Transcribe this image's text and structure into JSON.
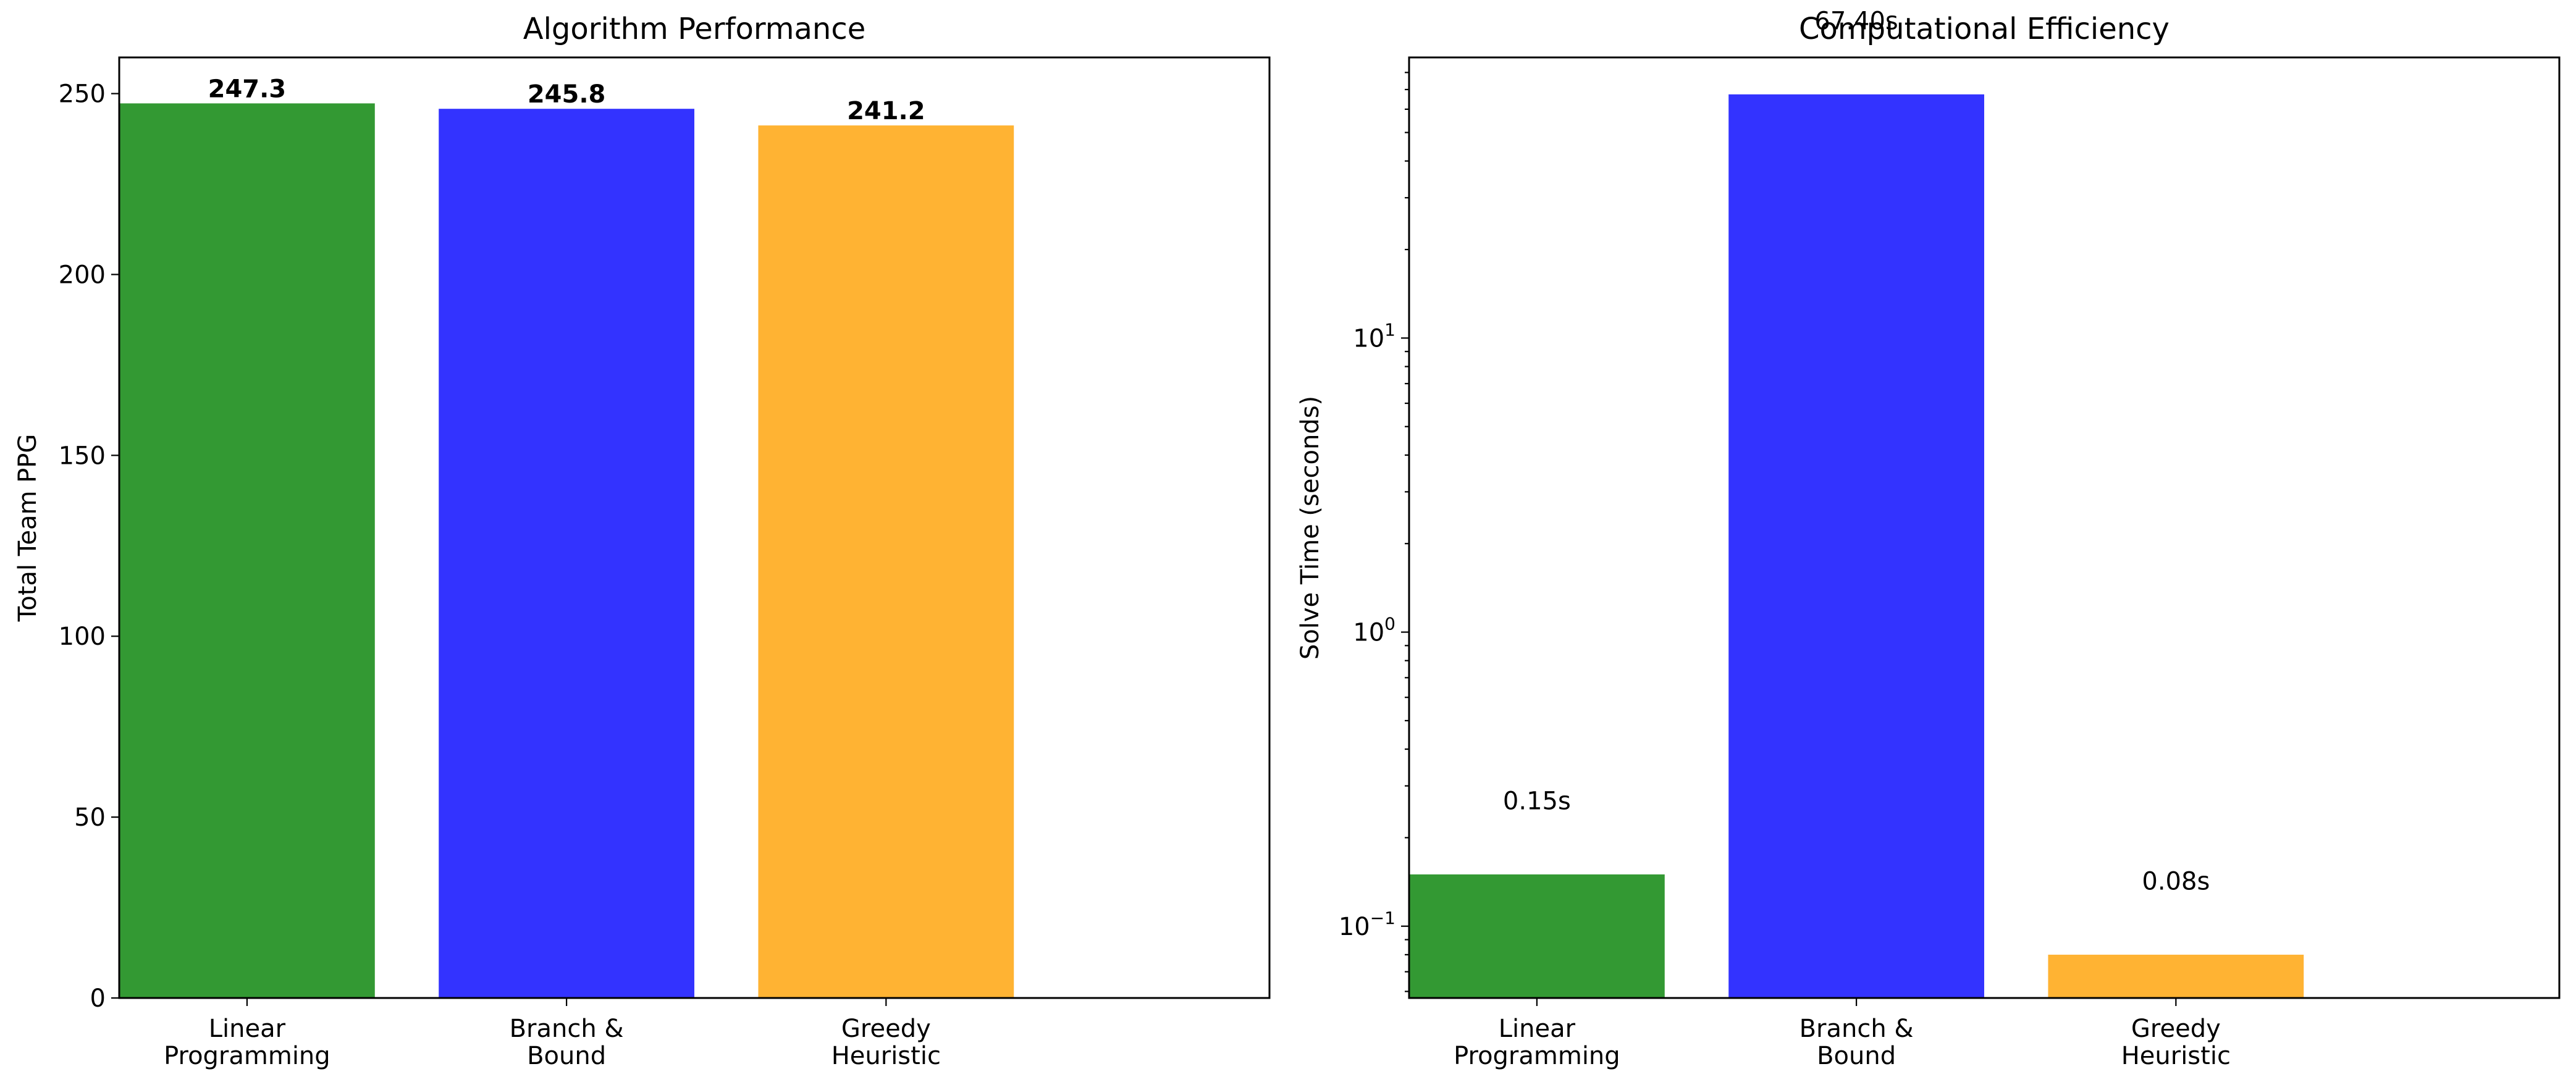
{
  "chart_data": [
    {
      "type": "bar",
      "title": "Algorithm Performance",
      "xlabel": "",
      "ylabel": "Total Team PPG",
      "categories": [
        [
          "Linear",
          "Programming"
        ],
        [
          "Branch &",
          "Bound"
        ],
        [
          "Greedy",
          "Heuristic"
        ]
      ],
      "values": [
        247.3,
        245.8,
        241.2
      ],
      "value_labels": [
        "247.3",
        "245.8",
        "241.2"
      ],
      "colors": [
        "#339933",
        "#3333ff",
        "#ffb333"
      ],
      "ylim": [
        0,
        260
      ],
      "yticks": [
        0,
        50,
        100,
        150,
        200,
        250
      ],
      "ytick_labels": [
        "0",
        "50",
        "100",
        "150",
        "200",
        "250"
      ],
      "yscale": "linear",
      "grid": false,
      "legend": "none"
    },
    {
      "type": "bar",
      "title": "Computational Efficiency",
      "xlabel": "",
      "ylabel": "Solve Time (seconds)",
      "categories": [
        [
          "Linear",
          "Programming"
        ],
        [
          "Branch &",
          "Bound"
        ],
        [
          "Greedy",
          "Heuristic"
        ]
      ],
      "values": [
        0.15,
        67.4,
        0.08
      ],
      "value_labels": [
        "0.15s",
        "67.40s",
        "0.08s"
      ],
      "colors": [
        "#339933",
        "#3333ff",
        "#ffb333"
      ],
      "ylim": [
        0.057,
        90
      ],
      "yticks": [
        0.1,
        1,
        10
      ],
      "ytick_labels": [
        [
          "10",
          "−1"
        ],
        [
          "10",
          "0"
        ],
        [
          "10",
          "1"
        ]
      ],
      "yscale": "log",
      "grid": false,
      "legend": "none"
    }
  ]
}
